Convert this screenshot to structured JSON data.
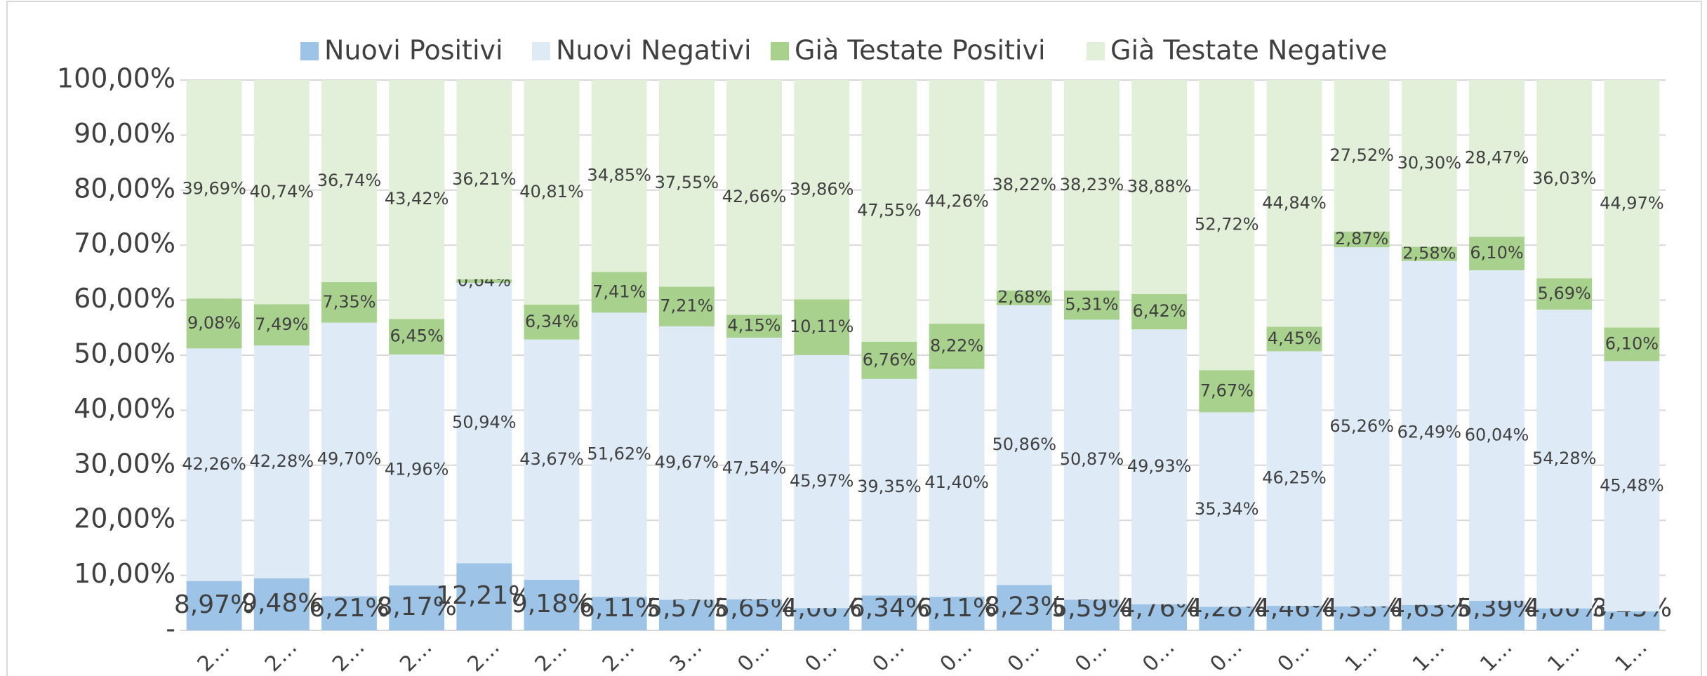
{
  "chart_data": {
    "type": "stacked_bar",
    "categories": [
      "2…",
      "2…",
      "2…",
      "2…",
      "2…",
      "2…",
      "2…",
      "3…",
      "0…",
      "0…",
      "0…",
      "0…",
      "0…",
      "0…",
      "0…",
      "0…",
      "0…",
      "1…",
      "1…",
      "1…",
      "1…",
      "1…"
    ],
    "series": [
      {
        "name": "Nuovi Positivi",
        "color": "#9dc3e6",
        "values": [
          8.97,
          9.48,
          6.21,
          8.17,
          12.21,
          9.18,
          6.11,
          5.57,
          5.65,
          4.06,
          6.34,
          6.11,
          8.23,
          5.59,
          4.76,
          4.28,
          4.46,
          4.35,
          4.63,
          5.39,
          4.0,
          3.45
        ],
        "value_labels": [
          "8,97%",
          "9,48%",
          "6,21%",
          "8,17%",
          "12,21%",
          "9,18%",
          "6,11%",
          "5,57%",
          "5,65%",
          "4,06%",
          "6,34%",
          "6,11%",
          "8,23%",
          "5,59%",
          "4,76%",
          "4,28%",
          "4,46%",
          "4,35%",
          "4,63%",
          "5,39%",
          "4,00%",
          "3,45%"
        ]
      },
      {
        "name": "Nuovi Negativi",
        "color": "#deebf7",
        "values": [
          42.26,
          42.28,
          49.7,
          41.96,
          50.94,
          43.67,
          51.62,
          49.67,
          47.54,
          45.97,
          39.35,
          41.4,
          50.86,
          50.87,
          49.93,
          35.34,
          46.25,
          65.26,
          62.49,
          60.04,
          54.28,
          45.48
        ],
        "value_labels": [
          "42,26%",
          "42,28%",
          "49,70%",
          "41,96%",
          "50,94%",
          "43,67%",
          "51,62%",
          "49,67%",
          "47,54%",
          "45,97%",
          "39,35%",
          "41,40%",
          "50,86%",
          "50,87%",
          "49,93%",
          "35,34%",
          "46,25%",
          "65,26%",
          "62,49%",
          "60,04%",
          "54,28%",
          "45,48%"
        ]
      },
      {
        "name": "Già Testate Positivi",
        "color": "#a9d18e",
        "values": [
          9.08,
          7.49,
          7.35,
          6.45,
          0.64,
          6.34,
          7.41,
          7.21,
          4.15,
          10.11,
          6.76,
          8.22,
          2.68,
          5.31,
          6.42,
          7.67,
          4.45,
          2.87,
          2.58,
          6.1,
          5.69,
          6.1
        ],
        "value_labels": [
          "9,08%",
          "7,49%",
          "7,35%",
          "6,45%",
          "0,64%",
          "6,34%",
          "7,41%",
          "7,21%",
          "4,15%",
          "10,11%",
          "6,76%",
          "8,22%",
          "2,68%",
          "5,31%",
          "6,42%",
          "7,67%",
          "4,45%",
          "2,87%",
          "2,58%",
          "6,10%",
          "5,69%",
          "6,10%"
        ]
      },
      {
        "name": "Già Testate Negative",
        "color": "#e2f0d9",
        "values": [
          39.69,
          40.74,
          36.74,
          43.42,
          36.21,
          40.81,
          34.85,
          37.55,
          42.66,
          39.86,
          47.55,
          44.26,
          38.22,
          38.23,
          38.88,
          52.72,
          44.84,
          27.52,
          30.3,
          28.47,
          36.03,
          44.97
        ],
        "value_labels": [
          "39,69%",
          "40,74%",
          "36,74%",
          "43,42%",
          "36,21%",
          "40,81%",
          "34,85%",
          "37,55%",
          "42,66%",
          "39,86%",
          "47,55%",
          "44,26%",
          "38,22%",
          "38,23%",
          "38,88%",
          "52,72%",
          "44,84%",
          "27,52%",
          "30,30%",
          "28,47%",
          "36,03%",
          "44,97%"
        ]
      }
    ],
    "ylim": [
      0,
      100
    ],
    "yticks": [
      {
        "value": 0,
        "label": "-"
      },
      {
        "value": 10,
        "label": "10,00%"
      },
      {
        "value": 20,
        "label": "20,00%"
      },
      {
        "value": 30,
        "label": "30,00%"
      },
      {
        "value": 40,
        "label": "40,00%"
      },
      {
        "value": 50,
        "label": "50,00%"
      },
      {
        "value": 60,
        "label": "60,00%"
      },
      {
        "value": 70,
        "label": "70,00%"
      },
      {
        "value": 80,
        "label": "80,00%"
      },
      {
        "value": 90,
        "label": "90,00%"
      },
      {
        "value": 100,
        "label": "100,00%"
      }
    ],
    "grid": true,
    "legend": "top"
  }
}
